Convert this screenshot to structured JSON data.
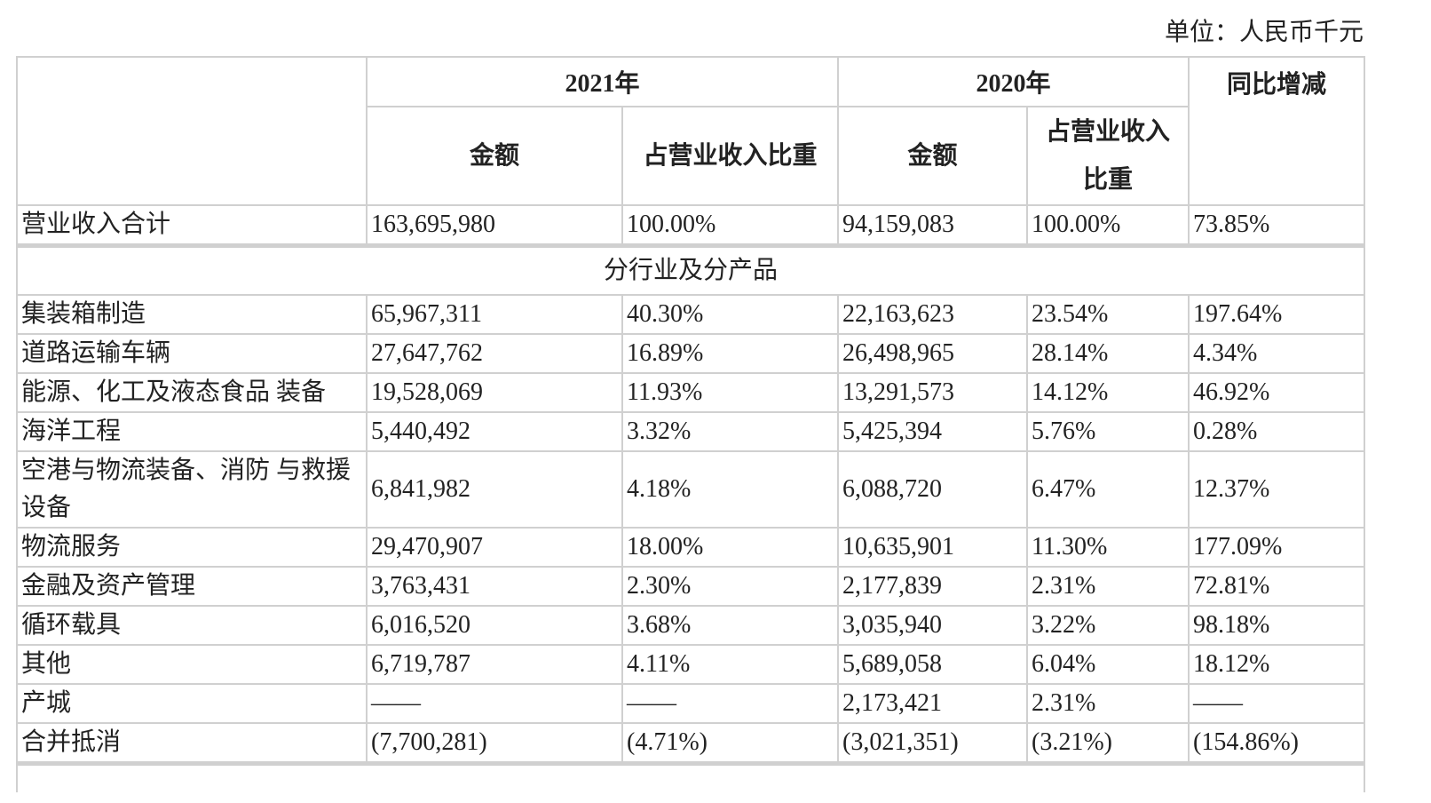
{
  "unit": "单位：人民币千元",
  "header": {
    "year1": "2021年",
    "year2": "2020年",
    "amount": "金额",
    "ratio": "占营业收入比重",
    "ratio_line1": "占营业收入",
    "ratio_line2": "比重",
    "yoy": "同比增减"
  },
  "total": {
    "label": "营业收入合计",
    "a2021": "163,695,980",
    "r2021": "100.00%",
    "a2020": "94,159,083",
    "r2020": "100.00%",
    "yoy": "73.85%"
  },
  "section": "分行业及分产品",
  "rows": [
    {
      "label": "集装箱制造",
      "a2021": "65,967,311",
      "r2021": "40.30%",
      "a2020": "22,163,623",
      "r2020": "23.54%",
      "yoy": "197.64%"
    },
    {
      "label": "道路运输车辆",
      "a2021": "27,647,762",
      "r2021": "16.89%",
      "a2020": "26,498,965",
      "r2020": "28.14%",
      "yoy": "4.34%"
    },
    {
      "label": "能源、化工及液态食品 装备",
      "a2021": "19,528,069",
      "r2021": "11.93%",
      "a2020": "13,291,573",
      "r2020": "14.12%",
      "yoy": "46.92%"
    },
    {
      "label": "海洋工程",
      "a2021": "5,440,492",
      "r2021": "3.32%",
      "a2020": "5,425,394",
      "r2020": "5.76%",
      "yoy": "0.28%"
    },
    {
      "label": "空港与物流装备、消防 与救援设备",
      "a2021": "6,841,982",
      "r2021": "4.18%",
      "a2020": "6,088,720",
      "r2020": "6.47%",
      "yoy": "12.37%"
    },
    {
      "label": "物流服务",
      "a2021": "29,470,907",
      "r2021": "18.00%",
      "a2020": "10,635,901",
      "r2020": "11.30%",
      "yoy": "177.09%"
    },
    {
      "label": "金融及资产管理",
      "a2021": "3,763,431",
      "r2021": "2.30%",
      "a2020": "2,177,839",
      "r2020": "2.31%",
      "yoy": "72.81%"
    },
    {
      "label": "循环载具",
      "a2021": "6,016,520",
      "r2021": "3.68%",
      "a2020": "3,035,940",
      "r2020": "3.22%",
      "yoy": "98.18%"
    },
    {
      "label": "其他",
      "a2021": "6,719,787",
      "r2021": "4.11%",
      "a2020": "5,689,058",
      "r2020": "6.04%",
      "yoy": "18.12%"
    },
    {
      "label": "产城",
      "a2021": "——",
      "r2021": "——",
      "a2020": "2,173,421",
      "r2020": "2.31%",
      "yoy": "——"
    },
    {
      "label": "合并抵消",
      "a2021": "(7,700,281)",
      "r2021": "(4.71%)",
      "a2020": "(3,021,351)",
      "r2020": "(3.21%)",
      "yoy": "(154.86%)"
    }
  ]
}
